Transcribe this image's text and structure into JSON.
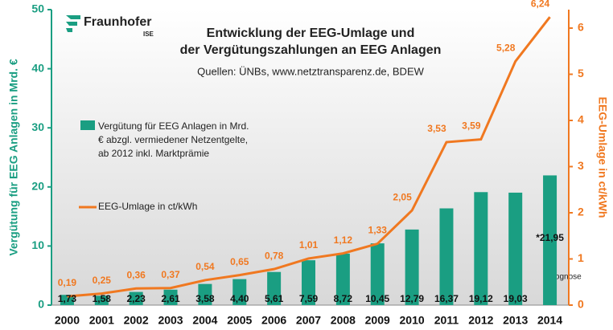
{
  "chart_data": {
    "type": "bar_line",
    "title": [
      "Entwicklung der EEG-Umlage und",
      "der Vergütungszahlungen an EEG Anlagen"
    ],
    "subtitle": "Quellen: ÜNBs, www.netztransparenz.de, BDEW",
    "logo": {
      "name": "Fraunhofer",
      "unit": "ISE"
    },
    "ylabel": "Vergütung für EEG Anlagen in Mrd. €",
    "y2label": "EEG-Umlage in ct/kWh",
    "annotation": "*Prognose",
    "categories": [
      "2000",
      "2001",
      "2002",
      "2003",
      "2004",
      "2005",
      "2006",
      "2007",
      "2008",
      "2009",
      "2010",
      "2011",
      "2012",
      "2013",
      "2014"
    ],
    "series": [
      {
        "name": "Vergütung für EEG Anlagen in Mrd. € abzgl. vermiedener Netzentgelte, ab 2012 inkl. Marktprämie",
        "type": "bar",
        "color": "#1a9e82",
        "values": [
          1.73,
          1.58,
          2.23,
          2.61,
          3.58,
          4.4,
          5.61,
          7.59,
          8.72,
          10.45,
          12.79,
          16.37,
          19.12,
          19.03,
          21.95
        ],
        "value_labels": [
          "1,73",
          "1,58",
          "2,23",
          "2,61",
          "3,58",
          "4,40",
          "5,61",
          "7,59",
          "8,72",
          "10,45",
          "12,79",
          "16,37",
          "19,12",
          "19,03",
          "*21,95"
        ]
      },
      {
        "name": "EEG-Umlage in ct/kWh",
        "type": "line",
        "axis": "y2",
        "color": "#f07820",
        "values": [
          0.19,
          0.25,
          0.36,
          0.37,
          0.54,
          0.65,
          0.78,
          1.01,
          1.12,
          1.33,
          2.05,
          3.53,
          3.59,
          5.28,
          6.24
        ],
        "value_labels": [
          "0,19",
          "0,25",
          "0,36",
          "0,37",
          "0,54",
          "0,65",
          "0,78",
          "1,01",
          "1,12",
          "1,33",
          "2,05",
          "3,53",
          "3,59",
          "5,28",
          "6,24"
        ]
      }
    ],
    "ylim": [
      0,
      50
    ],
    "yticks": [
      0,
      10,
      20,
      30,
      40,
      50
    ],
    "y2lim": [
      0,
      6.4
    ],
    "y2ticks": [
      0,
      1,
      2,
      3,
      4,
      5,
      6
    ]
  }
}
